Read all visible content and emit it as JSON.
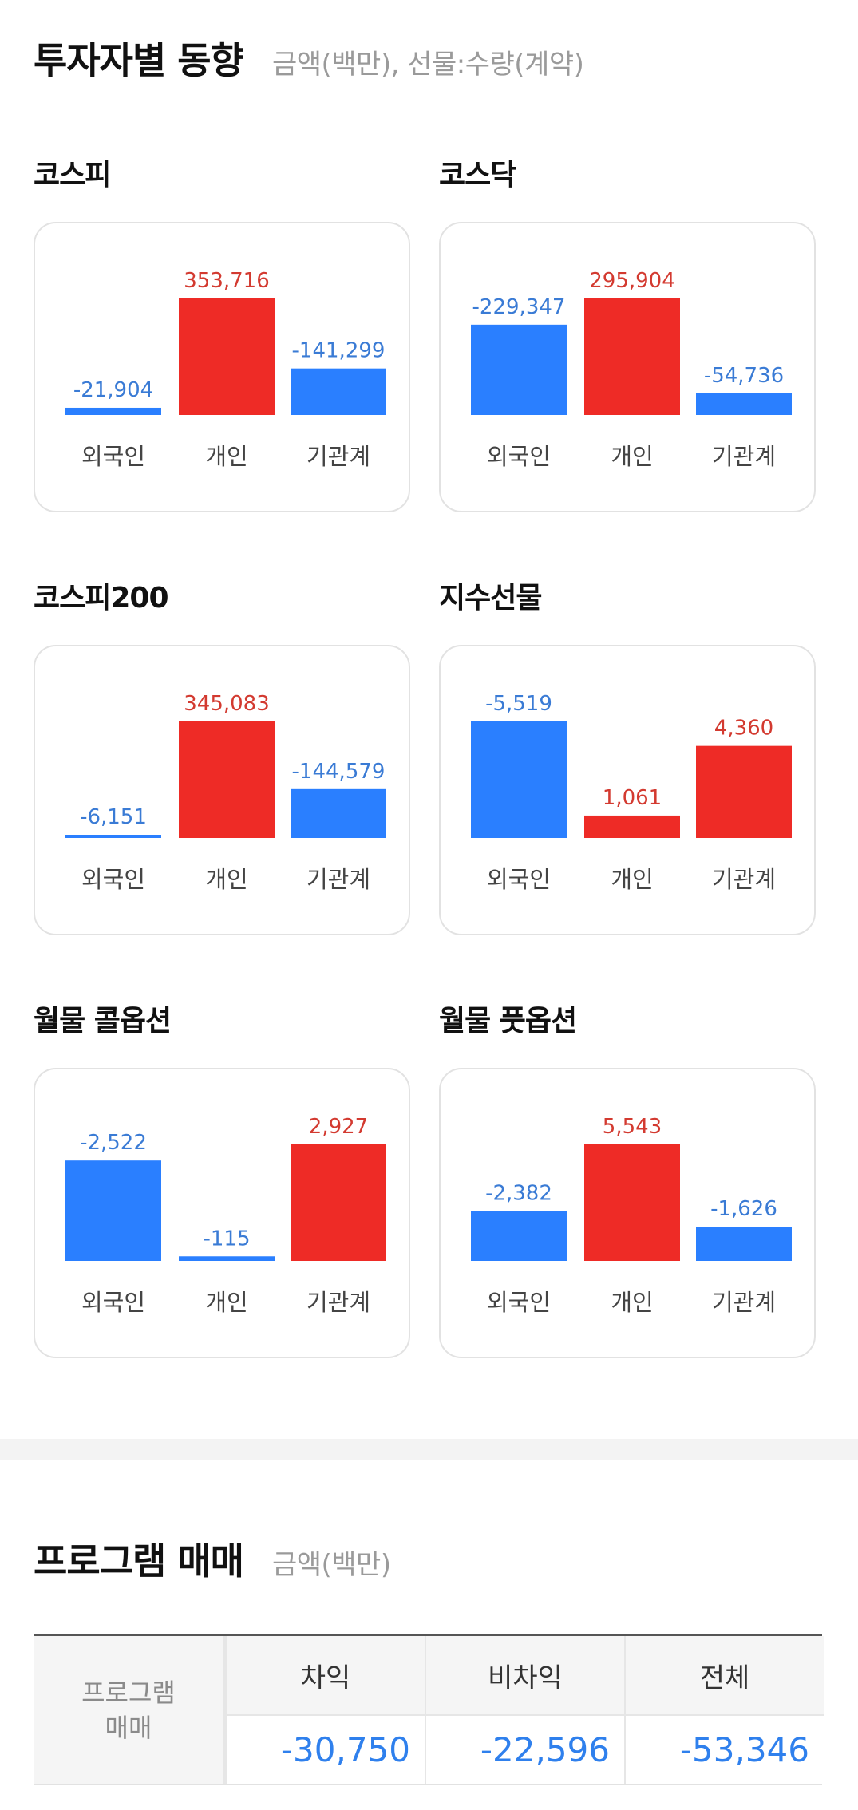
{
  "investor_section": {
    "title": "투자자별 동향",
    "subtitle": "금액(백만), 선물:수량(계약)"
  },
  "colors": {
    "positive": "#ee2b26",
    "negative": "#2a7fff",
    "positive_text": "#d33a30",
    "negative_text": "#3a7bd5"
  },
  "charts": [
    {
      "title": "코스피",
      "categories": [
        "외국인",
        "개인",
        "기관계"
      ],
      "values": [
        -21904,
        353716,
        -141299
      ],
      "labels": [
        "-21,904",
        "353,716",
        "-141,299"
      ]
    },
    {
      "title": "코스닥",
      "categories": [
        "외국인",
        "개인",
        "기관계"
      ],
      "values": [
        -229347,
        295904,
        -54736
      ],
      "labels": [
        "-229,347",
        "295,904",
        "-54,736"
      ]
    },
    {
      "title": "코스피200",
      "categories": [
        "외국인",
        "개인",
        "기관계"
      ],
      "values": [
        -6151,
        345083,
        -144579
      ],
      "labels": [
        "-6,151",
        "345,083",
        "-144,579"
      ]
    },
    {
      "title": "지수선물",
      "categories": [
        "외국인",
        "개인",
        "기관계"
      ],
      "values": [
        -5519,
        1061,
        4360
      ],
      "labels": [
        "-5,519",
        "1,061",
        "4,360"
      ]
    },
    {
      "title": "월물 콜옵션",
      "categories": [
        "외국인",
        "개인",
        "기관계"
      ],
      "values": [
        -2522,
        -115,
        2927
      ],
      "labels": [
        "-2,522",
        "-115",
        "2,927"
      ]
    },
    {
      "title": "월물 풋옵션",
      "categories": [
        "외국인",
        "개인",
        "기관계"
      ],
      "values": [
        -2382,
        5543,
        -1626
      ],
      "labels": [
        "-2,382",
        "5,543",
        "-1,626"
      ]
    }
  ],
  "program_section": {
    "title": "프로그램 매매",
    "subtitle": "금액(백만)",
    "row_header_line1": "프로그램",
    "row_header_line2": "매매",
    "columns": [
      "차익",
      "비차익",
      "전체"
    ],
    "values": [
      "-30,750",
      "-22,596",
      "-53,346"
    ]
  },
  "chart_data": [
    {
      "type": "bar",
      "title": "코스피",
      "categories": [
        "외국인",
        "개인",
        "기관계"
      ],
      "values": [
        -21904,
        353716,
        -141299
      ]
    },
    {
      "type": "bar",
      "title": "코스닥",
      "categories": [
        "외국인",
        "개인",
        "기관계"
      ],
      "values": [
        -229347,
        295904,
        -54736
      ]
    },
    {
      "type": "bar",
      "title": "코스피200",
      "categories": [
        "외국인",
        "개인",
        "기관계"
      ],
      "values": [
        -6151,
        345083,
        -144579
      ]
    },
    {
      "type": "bar",
      "title": "지수선물",
      "categories": [
        "외국인",
        "개인",
        "기관계"
      ],
      "values": [
        -5519,
        1061,
        4360
      ]
    },
    {
      "type": "bar",
      "title": "월물 콜옵션",
      "categories": [
        "외국인",
        "개인",
        "기관계"
      ],
      "values": [
        -2522,
        -115,
        2927
      ]
    },
    {
      "type": "bar",
      "title": "월물 풋옵션",
      "categories": [
        "외국인",
        "개인",
        "기관계"
      ],
      "values": [
        -2382,
        5543,
        -1626
      ]
    }
  ]
}
